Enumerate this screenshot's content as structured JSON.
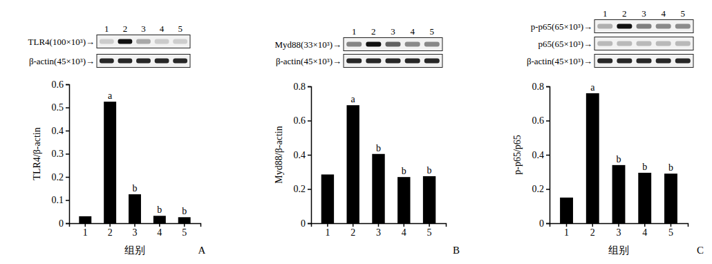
{
  "chart_data": [
    {
      "type": "bar",
      "panel_label": "A",
      "blot": {
        "lanes": [
          "1",
          "2",
          "3",
          "4",
          "5"
        ],
        "rows": [
          "TLR4(100×10³)→",
          "β-actin(45×10³)→"
        ]
      },
      "categories": [
        "1",
        "2",
        "3",
        "4",
        "5"
      ],
      "values": [
        0.03,
        0.525,
        0.125,
        0.032,
        0.026
      ],
      "bar_labels": [
        null,
        "a",
        "b",
        "b",
        "b"
      ],
      "x_label": "组别",
      "y_label": "TLR4/β-actin",
      "color": "#000000",
      "ylim": [
        0,
        0.6
      ],
      "yticks": [
        0,
        0.1,
        0.2,
        0.3,
        0.4,
        0.5,
        0.6
      ]
    },
    {
      "type": "bar",
      "panel_label": "B",
      "blot": {
        "lanes": [
          "1",
          "2",
          "3",
          "4",
          "5"
        ],
        "rows": [
          "Myd88(33×10³)→",
          "β-actin(45×10³)→"
        ]
      },
      "categories": [
        "1",
        "2",
        "3",
        "4",
        "5"
      ],
      "values": [
        0.285,
        0.69,
        0.405,
        0.27,
        0.275
      ],
      "bar_labels": [
        null,
        "a",
        "b",
        "b",
        "b"
      ],
      "y_label": "Myd88/β-actin",
      "color": "#000000",
      "ylim": [
        0,
        0.8
      ],
      "yticks": [
        0,
        0.2,
        0.4,
        0.6,
        0.8
      ]
    },
    {
      "type": "bar",
      "panel_label": "C",
      "blot": {
        "lanes": [
          "1",
          "2",
          "3",
          "4",
          "5"
        ],
        "rows": [
          "p-p65(65×10³)→",
          "p65(65×10³)→",
          "β-actin(45×10³)→"
        ]
      },
      "categories": [
        "1",
        "2",
        "3",
        "4",
        "5"
      ],
      "values": [
        0.15,
        0.76,
        0.34,
        0.295,
        0.29
      ],
      "bar_labels": [
        null,
        "a",
        "b",
        "b",
        "b"
      ],
      "x_label": "组别",
      "y_label": "p-p65/p65",
      "color": "#000000",
      "ylim": [
        0,
        0.8
      ],
      "yticks": [
        0,
        0.2,
        0.4,
        0.6,
        0.8
      ]
    }
  ]
}
